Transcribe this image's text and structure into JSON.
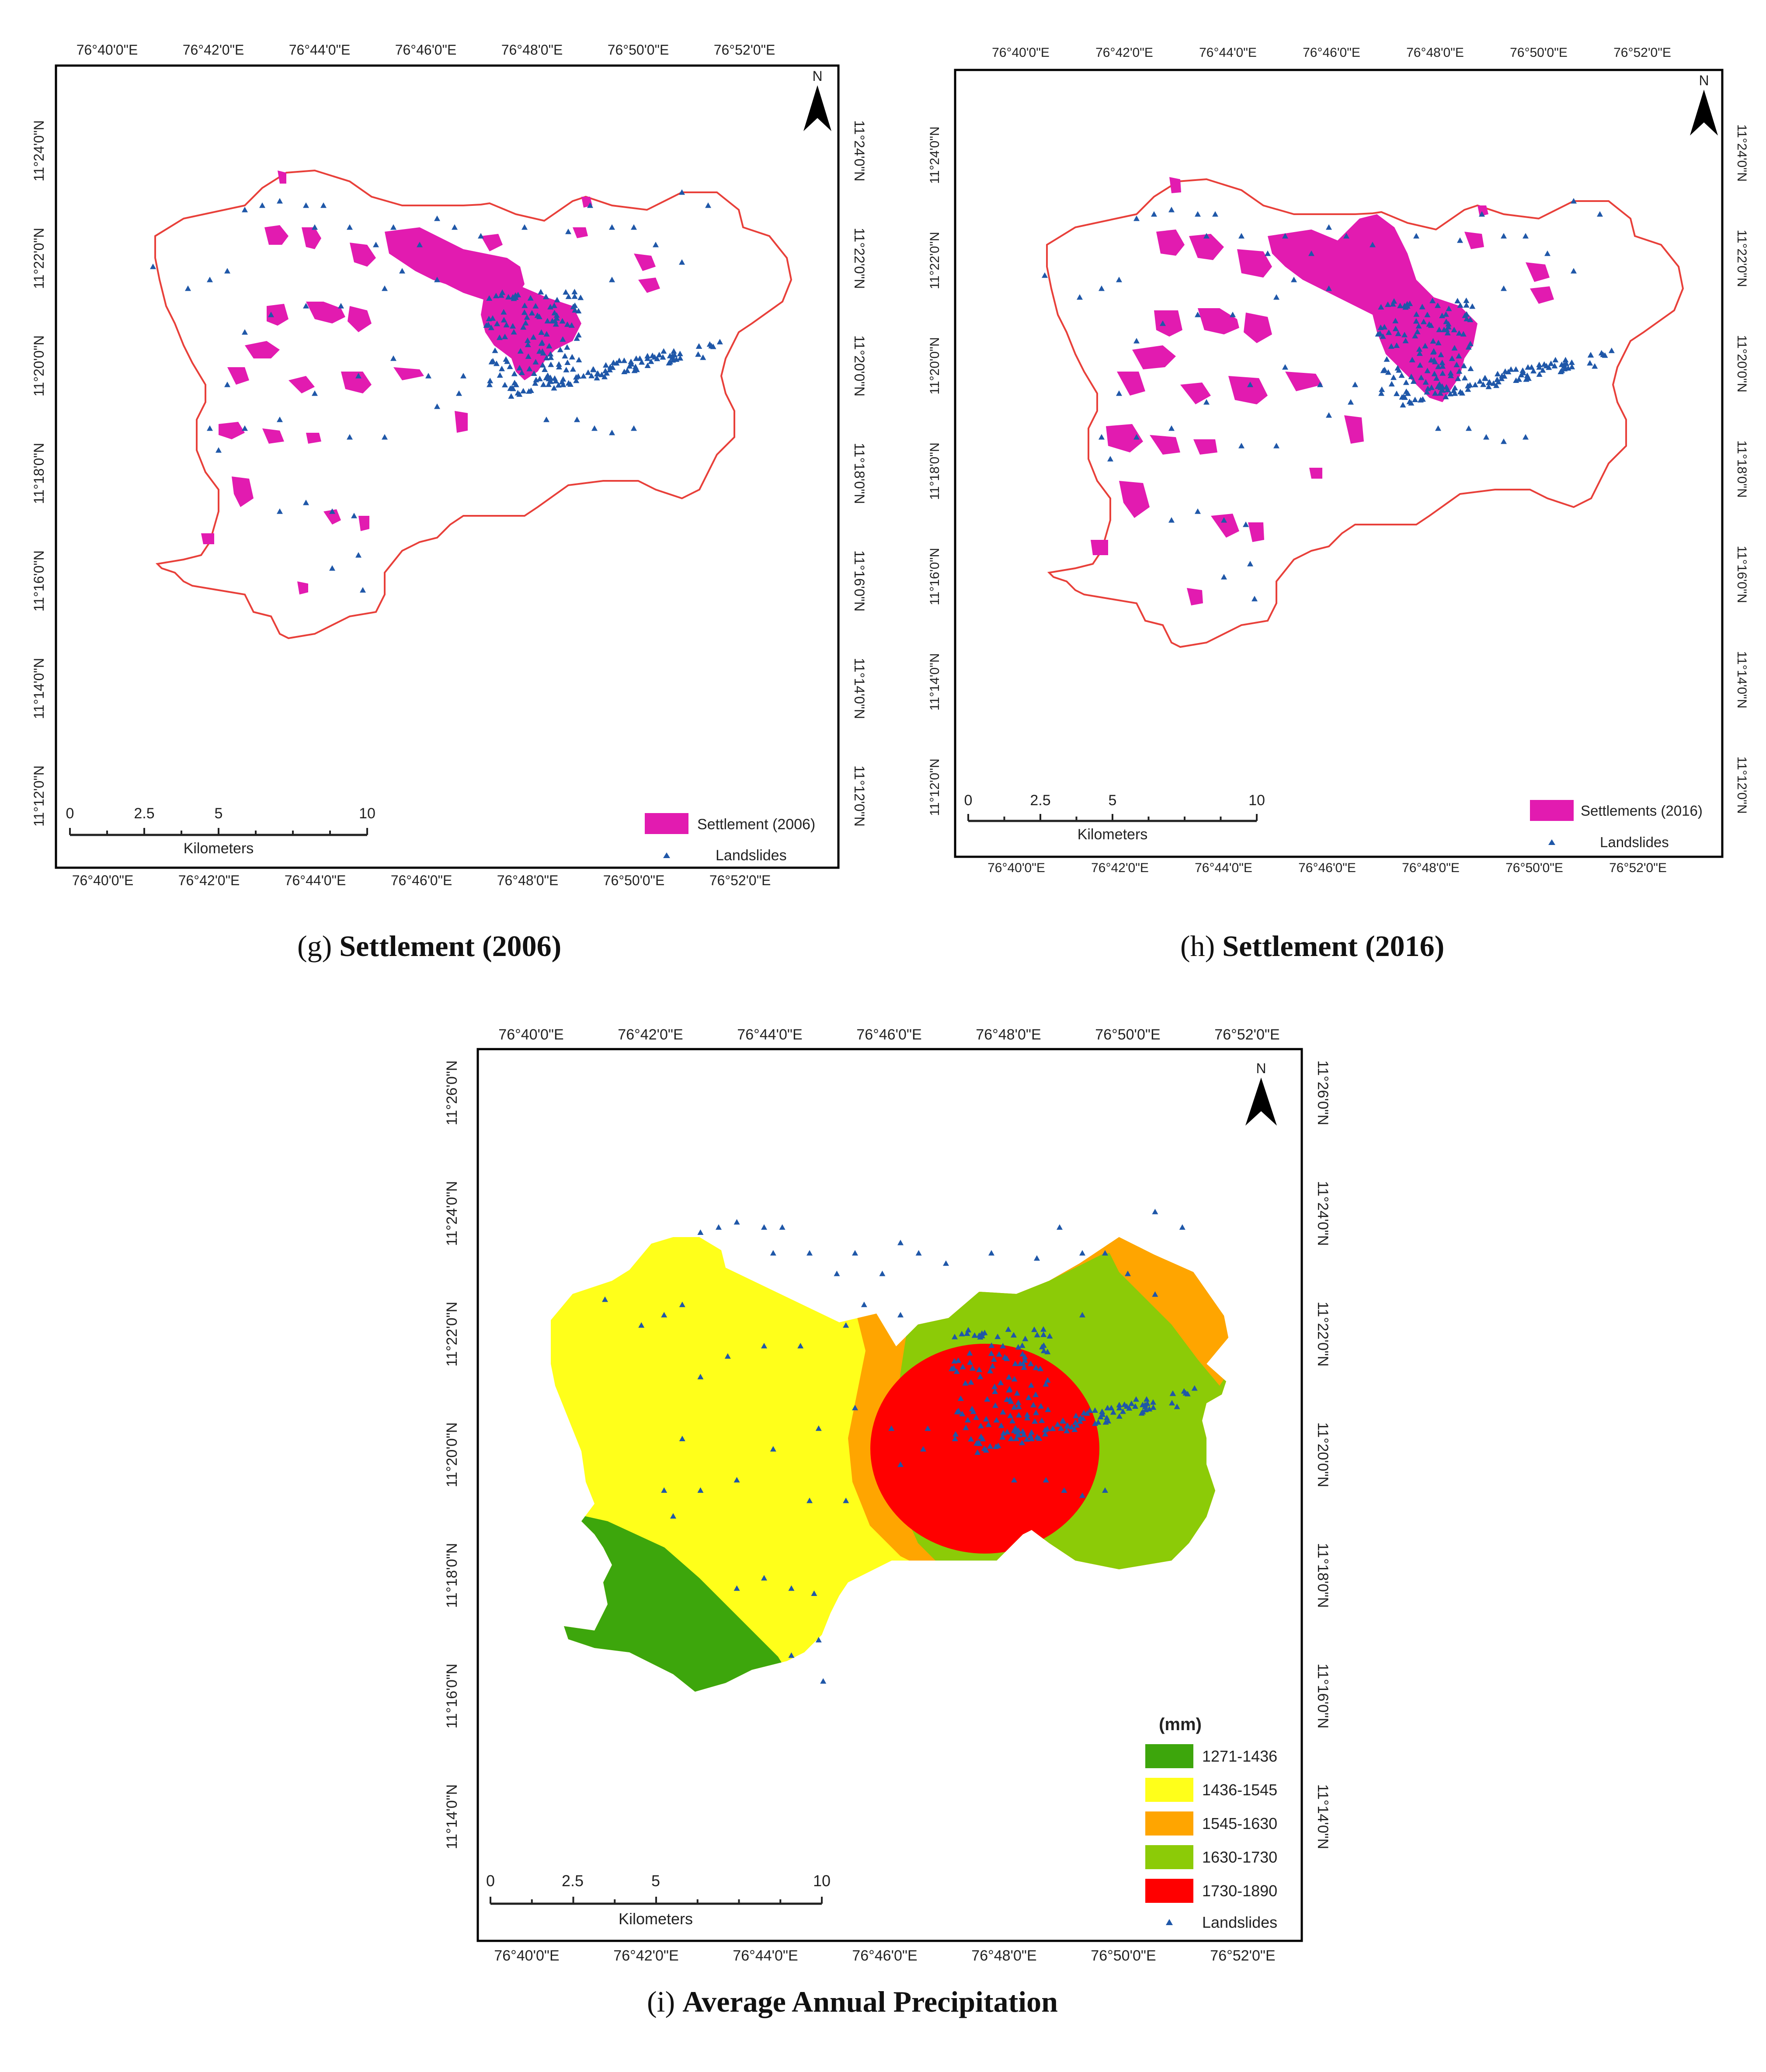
{
  "colors": {
    "settlement": "#e21bb0",
    "landslide": "#1f57a8",
    "boundary": "#e8403a",
    "frame": "#000000",
    "p1": "#3da60c",
    "p2": "#ffff1a",
    "p3": "#ffa500",
    "p4": "#8ccb07",
    "p5": "#ff0000"
  },
  "axes": {
    "longitudes": [
      "76°40'0\"E",
      "76°42'0\"E",
      "76°44'0\"E",
      "76°46'0\"E",
      "76°48'0\"E",
      "76°50'0\"E",
      "76°52'0\"E"
    ],
    "latitudes_gh": [
      "11°24'0\"N",
      "11°22'0\"N",
      "11°20'0\"N",
      "11°18'0\"N",
      "11°16'0\"N",
      "11°14'0\"N",
      "11°12'0\"N"
    ],
    "latitudes_i": [
      "11°26'0\"N",
      "11°24'0\"N",
      "11°22'0\"N",
      "11°20'0\"N",
      "11°18'0\"N",
      "11°16'0\"N",
      "11°14'0\"N"
    ]
  },
  "north_label": "N",
  "scale": {
    "ticks": [
      "0",
      "2.5",
      "5",
      "10"
    ],
    "unit": "Kilometers"
  },
  "maps": {
    "g": {
      "caption_letter": "(g)",
      "caption_title": "Settlement (2006)",
      "legend_settlement": "Settlement (2006)",
      "legend_landslides": "Landslides"
    },
    "h": {
      "caption_letter": "(h)",
      "caption_title": "Settlement (2016)",
      "legend_settlement": "Settlements (2016)",
      "legend_landslides": "Landslides"
    },
    "i": {
      "caption_letter": "(i)",
      "caption_title": "Average Annual Precipitation",
      "legend_title": "(mm)",
      "legend_classes": [
        "1271-1436",
        "1436-1545",
        "1545-1630",
        "1630-1730",
        "1730-1890"
      ],
      "legend_landslides": "Landslides"
    }
  }
}
